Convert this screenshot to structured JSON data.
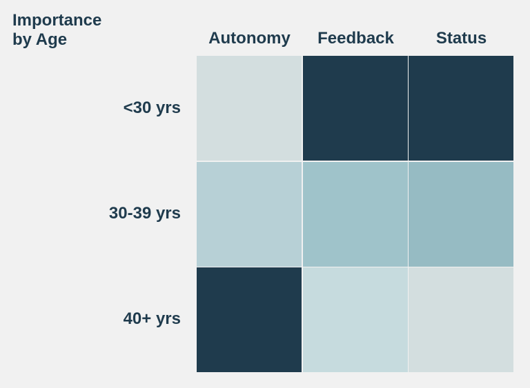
{
  "chart_data": {
    "type": "heatmap",
    "title": "Importance\nby Age",
    "columns": [
      "Autonomy",
      "Feedback",
      "Status"
    ],
    "rows": [
      "<30 yrs",
      "30-39 yrs",
      "40+ yrs"
    ],
    "cells": [
      [
        {
          "color": "#d3dedf"
        },
        {
          "color": "#1f3b4d"
        },
        {
          "color": "#1f3b4d"
        }
      ],
      [
        {
          "color": "#b7d0d6"
        },
        {
          "color": "#9fc3ca"
        },
        {
          "color": "#96bbc3"
        }
      ],
      [
        {
          "color": "#1f3b4d"
        },
        {
          "color": "#c6dbde"
        },
        {
          "color": "#d3dedf"
        }
      ]
    ]
  }
}
